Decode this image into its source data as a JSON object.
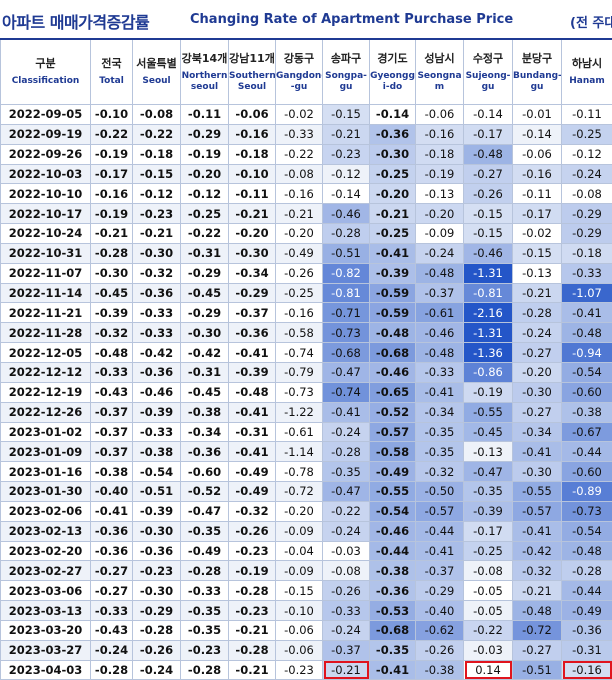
{
  "title": {
    "korean": "아파트 매매가격증감률",
    "english": "Changing Rate of Apartment Purchase Price",
    "unit": "(전 주대비"
  },
  "columns": [
    {
      "kr": "구분",
      "en": "Classification"
    },
    {
      "kr": "전국",
      "en": "Total"
    },
    {
      "kr": "서울특별",
      "en": "Seoul"
    },
    {
      "kr": "강북14개",
      "en": "Northern seoul"
    },
    {
      "kr": "강남11개",
      "en": "Southern Seoul"
    },
    {
      "kr": "강동구",
      "en": "Gangdong -gu"
    },
    {
      "kr": "송파구",
      "en": "Songpa- gu"
    },
    {
      "kr": "경기도",
      "en": "Gyeongg i-do"
    },
    {
      "kr": "성남시",
      "en": "Seongna m"
    },
    {
      "kr": "수정구",
      "en": "Sujeong- gu"
    },
    {
      "kr": "분당구",
      "en": "Bundang- gu"
    },
    {
      "kr": "하남시",
      "en": "Hanam"
    }
  ],
  "rows": [
    {
      "date": "2022-09-05",
      "v": [
        "-0.10",
        "-0.08",
        "-0.11",
        "-0.06",
        "-0.02",
        "-0.15",
        "-0.14",
        "-0.06",
        "-0.14",
        "-0.01",
        "-0.11"
      ]
    },
    {
      "date": "2022-09-19",
      "v": [
        "-0.22",
        "-0.22",
        "-0.29",
        "-0.16",
        "-0.33",
        "-0.21",
        "-0.36",
        "-0.16",
        "-0.17",
        "-0.14",
        "-0.25"
      ]
    },
    {
      "date": "2022-09-26",
      "v": [
        "-0.19",
        "-0.18",
        "-0.19",
        "-0.18",
        "-0.22",
        "-0.23",
        "-0.30",
        "-0.18",
        "-0.48",
        "-0.06",
        "-0.12"
      ]
    },
    {
      "date": "2022-10-03",
      "v": [
        "-0.17",
        "-0.15",
        "-0.20",
        "-0.10",
        "-0.08",
        "-0.12",
        "-0.25",
        "-0.19",
        "-0.27",
        "-0.16",
        "-0.24"
      ]
    },
    {
      "date": "2022-10-10",
      "v": [
        "-0.16",
        "-0.12",
        "-0.12",
        "-0.11",
        "-0.16",
        "-0.14",
        "-0.20",
        "-0.13",
        "-0.26",
        "-0.11",
        "-0.08"
      ]
    },
    {
      "date": "2022-10-17",
      "v": [
        "-0.19",
        "-0.23",
        "-0.25",
        "-0.21",
        "-0.21",
        "-0.46",
        "-0.21",
        "-0.20",
        "-0.15",
        "-0.17",
        "-0.29"
      ]
    },
    {
      "date": "2022-10-24",
      "v": [
        "-0.21",
        "-0.21",
        "-0.22",
        "-0.20",
        "-0.20",
        "-0.28",
        "-0.25",
        "-0.09",
        "-0.15",
        "-0.02",
        "-0.29"
      ]
    },
    {
      "date": "2022-10-31",
      "v": [
        "-0.28",
        "-0.30",
        "-0.31",
        "-0.30",
        "-0.49",
        "-0.51",
        "-0.41",
        "-0.24",
        "-0.46",
        "-0.15",
        "-0.18"
      ]
    },
    {
      "date": "2022-11-07",
      "v": [
        "-0.30",
        "-0.32",
        "-0.29",
        "-0.34",
        "-0.26",
        "-0.82",
        "-0.39",
        "-0.48",
        "-1.31",
        "-0.13",
        "-0.33"
      ]
    },
    {
      "date": "2022-11-14",
      "v": [
        "-0.45",
        "-0.36",
        "-0.45",
        "-0.29",
        "-0.25",
        "-0.81",
        "-0.59",
        "-0.37",
        "-0.81",
        "-0.21",
        "-1.07"
      ]
    },
    {
      "date": "2022-11-21",
      "v": [
        "-0.39",
        "-0.33",
        "-0.29",
        "-0.37",
        "-0.16",
        "-0.71",
        "-0.59",
        "-0.61",
        "-2.16",
        "-0.28",
        "-0.41"
      ]
    },
    {
      "date": "2022-11-28",
      "v": [
        "-0.32",
        "-0.33",
        "-0.30",
        "-0.36",
        "-0.58",
        "-0.73",
        "-0.48",
        "-0.46",
        "-1.31",
        "-0.24",
        "-0.48"
      ]
    },
    {
      "date": "2022-12-05",
      "v": [
        "-0.48",
        "-0.42",
        "-0.42",
        "-0.41",
        "-0.74",
        "-0.68",
        "-0.68",
        "-0.48",
        "-1.36",
        "-0.27",
        "-0.94"
      ]
    },
    {
      "date": "2022-12-12",
      "v": [
        "-0.33",
        "-0.36",
        "-0.31",
        "-0.39",
        "-0.79",
        "-0.47",
        "-0.46",
        "-0.33",
        "-0.86",
        "-0.20",
        "-0.54"
      ]
    },
    {
      "date": "2022-12-19",
      "v": [
        "-0.43",
        "-0.46",
        "-0.45",
        "-0.48",
        "-0.73",
        "-0.74",
        "-0.65",
        "-0.41",
        "-0.19",
        "-0.30",
        "-0.60"
      ]
    },
    {
      "date": "2022-12-26",
      "v": [
        "-0.37",
        "-0.39",
        "-0.38",
        "-0.41",
        "-1.22",
        "-0.41",
        "-0.52",
        "-0.34",
        "-0.55",
        "-0.27",
        "-0.38"
      ]
    },
    {
      "date": "2023-01-02",
      "v": [
        "-0.37",
        "-0.33",
        "-0.34",
        "-0.31",
        "-0.61",
        "-0.24",
        "-0.57",
        "-0.35",
        "-0.45",
        "-0.34",
        "-0.67"
      ]
    },
    {
      "date": "2023-01-09",
      "v": [
        "-0.37",
        "-0.38",
        "-0.36",
        "-0.41",
        "-1.14",
        "-0.28",
        "-0.58",
        "-0.35",
        "-0.13",
        "-0.41",
        "-0.44"
      ]
    },
    {
      "date": "2023-01-16",
      "v": [
        "-0.38",
        "-0.54",
        "-0.60",
        "-0.49",
        "-0.78",
        "-0.35",
        "-0.49",
        "-0.32",
        "-0.47",
        "-0.30",
        "-0.60"
      ]
    },
    {
      "date": "2023-01-30",
      "v": [
        "-0.40",
        "-0.51",
        "-0.52",
        "-0.49",
        "-0.72",
        "-0.47",
        "-0.55",
        "-0.50",
        "-0.35",
        "-0.55",
        "-0.89"
      ]
    },
    {
      "date": "2023-02-06",
      "v": [
        "-0.41",
        "-0.39",
        "-0.47",
        "-0.32",
        "-0.20",
        "-0.22",
        "-0.54",
        "-0.57",
        "-0.39",
        "-0.57",
        "-0.73"
      ]
    },
    {
      "date": "2023-02-13",
      "v": [
        "-0.36",
        "-0.30",
        "-0.35",
        "-0.26",
        "-0.09",
        "-0.24",
        "-0.46",
        "-0.44",
        "-0.17",
        "-0.41",
        "-0.54"
      ]
    },
    {
      "date": "2023-02-20",
      "v": [
        "-0.36",
        "-0.36",
        "-0.49",
        "-0.23",
        "-0.04",
        "-0.03",
        "-0.44",
        "-0.41",
        "-0.25",
        "-0.42",
        "-0.48"
      ]
    },
    {
      "date": "2023-02-27",
      "v": [
        "-0.27",
        "-0.23",
        "-0.28",
        "-0.19",
        "-0.09",
        "-0.08",
        "-0.38",
        "-0.37",
        "-0.08",
        "-0.32",
        "-0.28"
      ]
    },
    {
      "date": "2023-03-06",
      "v": [
        "-0.27",
        "-0.30",
        "-0.33",
        "-0.28",
        "-0.15",
        "-0.26",
        "-0.36",
        "-0.29",
        "-0.05",
        "-0.21",
        "-0.44"
      ]
    },
    {
      "date": "2023-03-13",
      "v": [
        "-0.33",
        "-0.29",
        "-0.35",
        "-0.23",
        "-0.10",
        "-0.33",
        "-0.53",
        "-0.40",
        "-0.05",
        "-0.48",
        "-0.49"
      ]
    },
    {
      "date": "2023-03-20",
      "v": [
        "-0.43",
        "-0.28",
        "-0.35",
        "-0.21",
        "-0.06",
        "-0.24",
        "-0.68",
        "-0.62",
        "-0.22",
        "-0.72",
        "-0.36"
      ]
    },
    {
      "date": "2023-03-27",
      "v": [
        "-0.24",
        "-0.26",
        "-0.23",
        "-0.28",
        "-0.06",
        "-0.37",
        "-0.35",
        "-0.26",
        "-0.03",
        "-0.27",
        "-0.31"
      ]
    },
    {
      "date": "2023-04-03",
      "v": [
        "-0.28",
        "-0.24",
        "-0.28",
        "-0.21",
        "-0.23",
        "-0.21",
        "-0.41",
        "-0.38",
        "0.14",
        "-0.51",
        "-0.16"
      ]
    }
  ],
  "highlighted": [
    {
      "row": "2023-04-03",
      "cols": [
        6,
        9,
        11
      ]
    }
  ],
  "colors": {
    "title": "#1f3a93",
    "highlight_border": "#e0141e",
    "cell_max": "#2456c8"
  }
}
